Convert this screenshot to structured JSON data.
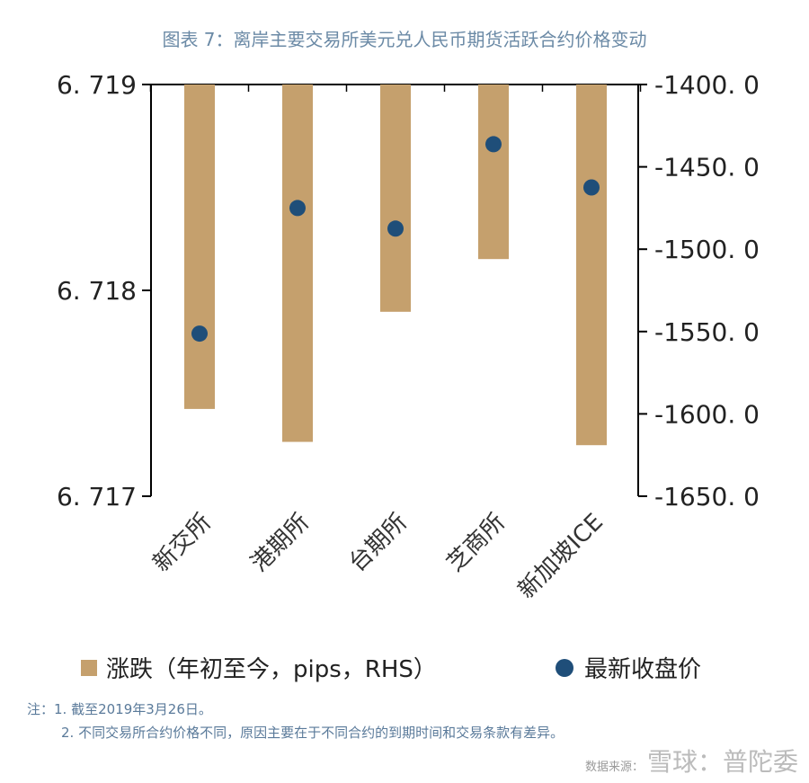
{
  "title": "图表 7：离岸主要交易所美元兑人民币期货活跃合约价格变动",
  "chart_data": {
    "type": "bar",
    "categories": [
      "新交所",
      "港期所",
      "台期所",
      "芝商所",
      "新加坡ICE"
    ],
    "series": [
      {
        "name": "涨跌（年初至今，pips，RHS）",
        "kind": "bar",
        "axis": "right",
        "values": [
          -1597,
          -1617,
          -1538,
          -1506,
          -1619
        ]
      },
      {
        "name": "最新收盘价",
        "kind": "scatter",
        "axis": "left",
        "values": [
          6.71779,
          6.7184,
          6.7183,
          6.71871,
          6.7185
        ]
      }
    ],
    "left_axis": {
      "ylim": [
        6.717,
        6.719
      ],
      "ticks": [
        "6. 717",
        "6. 718",
        "6. 719"
      ],
      "tick_values": [
        6.717,
        6.718,
        6.719
      ]
    },
    "right_axis": {
      "ylim": [
        -1650,
        -1400
      ],
      "ticks": [
        "-1400. 0",
        "-1450. 0",
        "-1500. 0",
        "-1550. 0",
        "-1600. 0",
        "-1650. 0"
      ],
      "tick_values": [
        -1400,
        -1450,
        -1500,
        -1550,
        -1600,
        -1650
      ]
    },
    "colors": {
      "bar": "#c5a06d",
      "dot": "#1f4e79"
    },
    "legend_position": "bottom",
    "grid": false
  },
  "legend": {
    "bar_label": "涨跌（年初至今，pips，RHS）",
    "dot_label": "最新收盘价"
  },
  "notes": {
    "line1": "注：1. 截至2019年3月26日。",
    "line2": "2. 不同交易所合约价格不同，原因主要在于不同合约的到期时间和交易条款有差异。"
  },
  "watermark": {
    "source": "数据来源：",
    "brand": "雪球：普陀委"
  }
}
